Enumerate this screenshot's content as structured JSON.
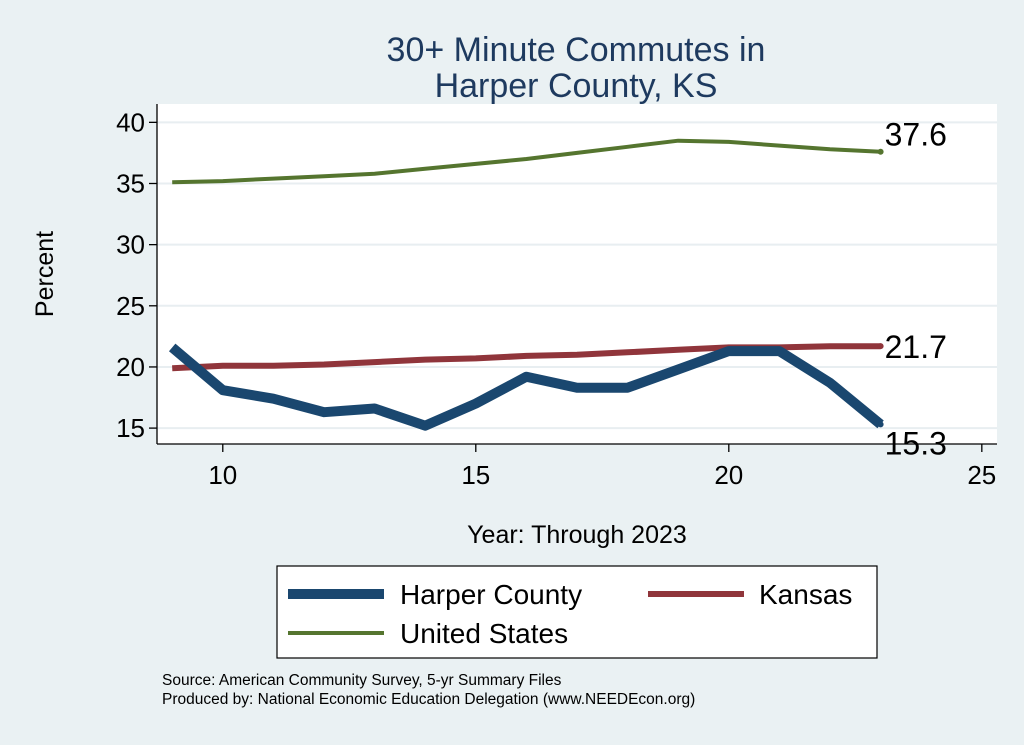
{
  "chart_data": {
    "type": "line",
    "title_lines": [
      "30+ Minute Commutes in",
      "Harper County, KS"
    ],
    "xlabel": "Year: Through 2023",
    "ylabel": "Percent",
    "xlim": [
      8.7,
      25.3
    ],
    "ylim": [
      13.7,
      41.5
    ],
    "xticks": [
      10,
      15,
      20,
      25
    ],
    "yticks": [
      15,
      20,
      25,
      30,
      35,
      40
    ],
    "grid": true,
    "colors": {
      "harper": "#1a476f",
      "kansas": "#90353b",
      "us": "#55752f",
      "background": "#eaf1f3",
      "plot_bg": "#ffffff",
      "title": "#1e3a5f"
    },
    "series": [
      {
        "key": "harper",
        "name": "Harper County",
        "x": [
          9,
          10,
          11,
          12,
          13,
          14,
          15,
          16,
          17,
          18,
          19,
          20,
          21,
          22,
          23
        ],
        "values": [
          21.6,
          18.1,
          17.4,
          16.3,
          16.6,
          15.2,
          17.0,
          19.2,
          18.3,
          18.3,
          19.8,
          21.3,
          21.3,
          18.7,
          15.3
        ],
        "end_label": "15.3"
      },
      {
        "key": "kansas",
        "name": "Kansas",
        "x": [
          9,
          10,
          11,
          12,
          13,
          14,
          15,
          16,
          17,
          18,
          19,
          20,
          21,
          22,
          23
        ],
        "values": [
          19.9,
          20.1,
          20.1,
          20.2,
          20.4,
          20.6,
          20.7,
          20.9,
          21.0,
          21.2,
          21.4,
          21.6,
          21.6,
          21.7,
          21.7
        ],
        "end_label": "21.7"
      },
      {
        "key": "us",
        "name": "United States",
        "x": [
          9,
          10,
          11,
          12,
          13,
          14,
          15,
          16,
          17,
          18,
          19,
          20,
          21,
          22,
          23
        ],
        "values": [
          35.1,
          35.2,
          35.4,
          35.6,
          35.8,
          36.2,
          36.6,
          37.0,
          37.5,
          38.0,
          38.5,
          38.4,
          38.1,
          37.8,
          37.6
        ],
        "end_label": "37.6"
      }
    ],
    "legend": {
      "placement": "bottom"
    },
    "source_lines": [
      "Source: American Community Survey, 5-yr Summary Files",
      "Produced by: National Economic Education Delegation (www.NEEDEcon.org)"
    ]
  }
}
